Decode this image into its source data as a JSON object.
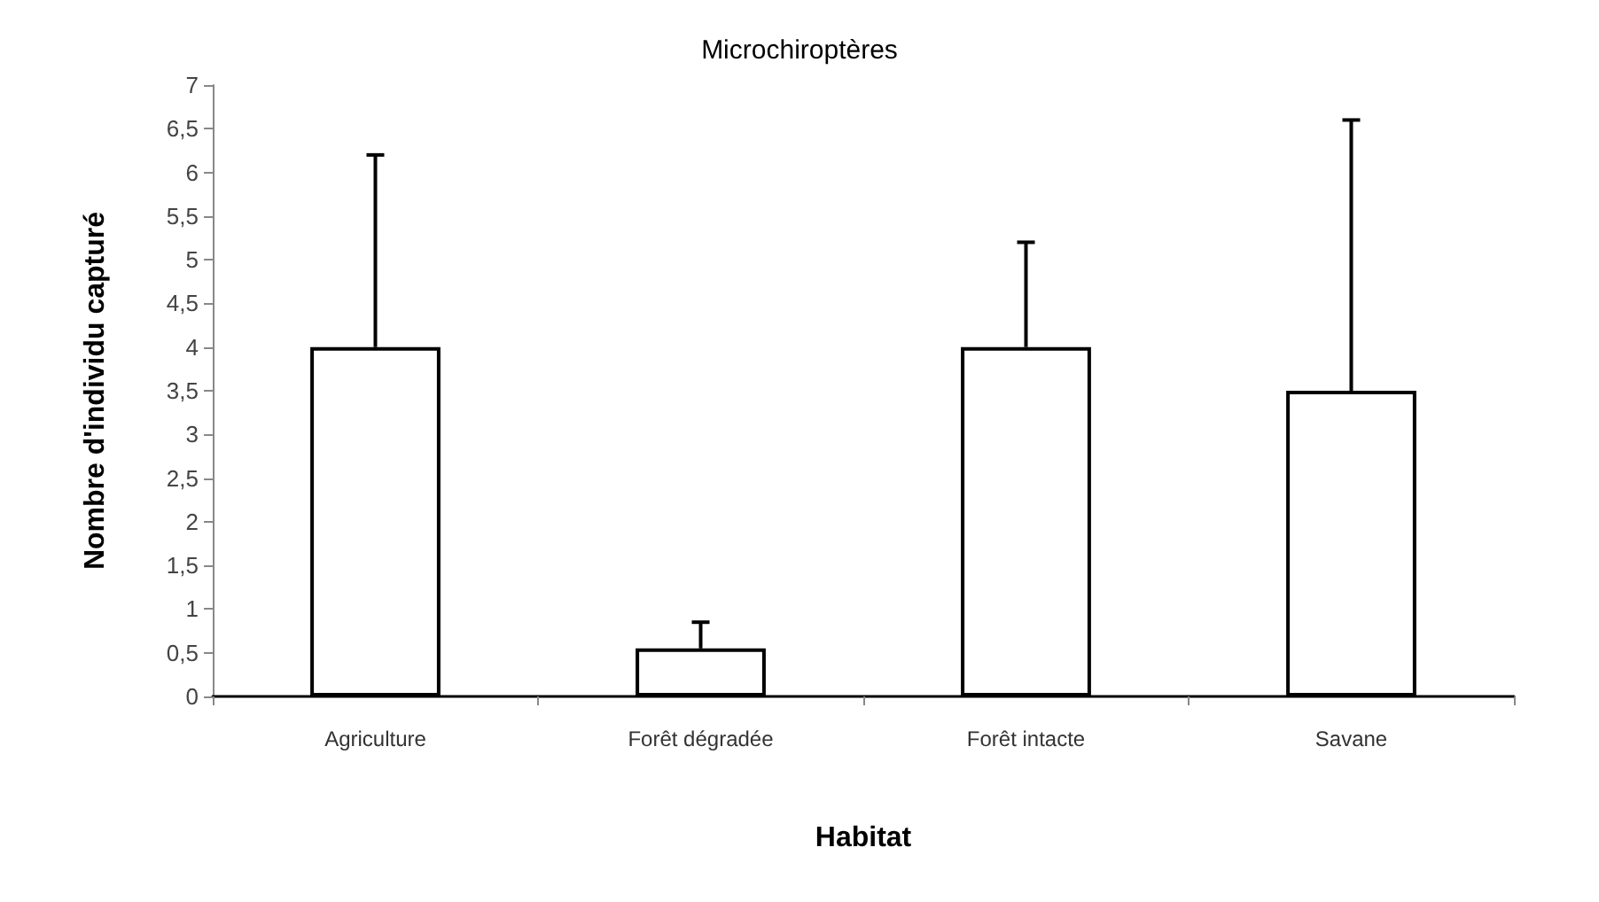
{
  "chart_data": {
    "type": "bar",
    "title": "Microchiroptères",
    "xlabel": "Habitat",
    "ylabel": "Nombre d'individu capturé",
    "categories": [
      "Agriculture",
      "Forêt dégradée",
      "Forêt intacte",
      "Savane"
    ],
    "values": [
      4,
      0.55,
      4,
      3.5
    ],
    "errors": [
      [
        4,
        6.2
      ],
      [
        0.55,
        0.85
      ],
      [
        4,
        5.2
      ],
      [
        3.5,
        6.6
      ]
    ],
    "color": "#ffffff",
    "ylim": [
      0,
      7
    ],
    "yticks": [
      0,
      {
        "value": 0.5,
        "label": "0,5"
      },
      1,
      {
        "value": 1.5,
        "label": "1,5"
      },
      2,
      {
        "value": 2.5,
        "label": "2,5"
      },
      3,
      {
        "value": 3.5,
        "label": "3,5"
      },
      4,
      {
        "value": 4.5,
        "label": "4,5"
      },
      5,
      {
        "value": 5.5,
        "label": "5,5"
      },
      6,
      {
        "value": 6.5,
        "label": "6,5"
      },
      7
    ],
    "grid": false
  }
}
